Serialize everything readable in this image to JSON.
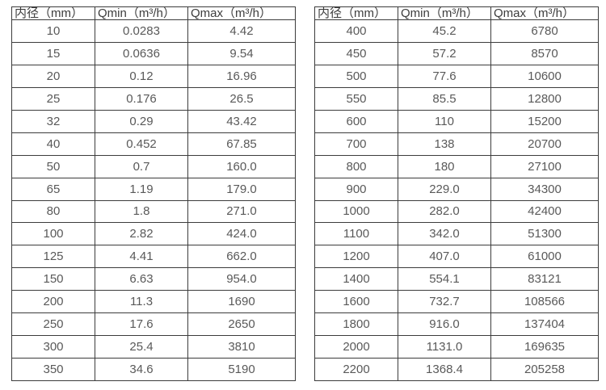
{
  "colors": {
    "border": "#3c3c3c",
    "header_text": "#3d3d3d",
    "cell_text": "#595959",
    "background": "#ffffff"
  },
  "tables": [
    {
      "name": "flow-spec-small-diameters",
      "headers": [
        "内径（mm）",
        "Qmin（m³/h）",
        "Qmax（m³/h）"
      ],
      "rows": [
        [
          "10",
          "0.0283",
          "4.42"
        ],
        [
          "15",
          "0.0636",
          "9.54"
        ],
        [
          "20",
          "0.12",
          "16.96"
        ],
        [
          "25",
          "0.176",
          "26.5"
        ],
        [
          "32",
          "0.29",
          "43.42"
        ],
        [
          "40",
          "0.452",
          "67.85"
        ],
        [
          "50",
          "0.7",
          "160.0"
        ],
        [
          "65",
          "1.19",
          "179.0"
        ],
        [
          "80",
          "1.8",
          "271.0"
        ],
        [
          "100",
          "2.82",
          "424.0"
        ],
        [
          "125",
          "4.41",
          "662.0"
        ],
        [
          "150",
          "6.63",
          "954.0"
        ],
        [
          "200",
          "11.3",
          "1690"
        ],
        [
          "250",
          "17.6",
          "2650"
        ],
        [
          "300",
          "25.4",
          "3810"
        ],
        [
          "350",
          "34.6",
          "5190"
        ]
      ]
    },
    {
      "name": "flow-spec-large-diameters",
      "headers": [
        "内径（mm）",
        "Qmin（m³/h）",
        "Qmax（m³/h）"
      ],
      "rows": [
        [
          "400",
          "45.2",
          "6780"
        ],
        [
          "450",
          "57.2",
          "8570"
        ],
        [
          "500",
          "77.6",
          "10600"
        ],
        [
          "550",
          "85.5",
          "12800"
        ],
        [
          "600",
          "110",
          "15200"
        ],
        [
          "700",
          "138",
          "20700"
        ],
        [
          "800",
          "180",
          "27100"
        ],
        [
          "900",
          "229.0",
          "34300"
        ],
        [
          "1000",
          "282.0",
          "42400"
        ],
        [
          "1100",
          "342.0",
          "51300"
        ],
        [
          "1200",
          "407.0",
          "61000"
        ],
        [
          "1400",
          "554.1",
          "83121"
        ],
        [
          "1600",
          "732.7",
          "108566"
        ],
        [
          "1800",
          "916.0",
          "137404"
        ],
        [
          "2000",
          "1131.0",
          "169635"
        ],
        [
          "2200",
          "1368.4",
          "205258"
        ]
      ]
    }
  ]
}
